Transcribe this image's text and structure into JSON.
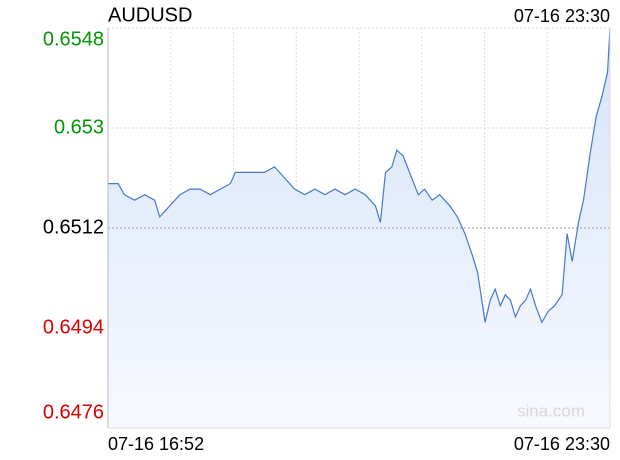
{
  "chart_data": {
    "type": "line",
    "title": "AUDUSD",
    "timestamp": "07-16 23:30",
    "x_labels": [
      "07-16 16:52",
      "07-16 23:30"
    ],
    "watermark": "sina.com",
    "xlim": [
      0,
      398
    ],
    "x": [
      0,
      8,
      13,
      21,
      29,
      37,
      41,
      49,
      57,
      65,
      73,
      81,
      89,
      97,
      101,
      109,
      117,
      124,
      132,
      140,
      148,
      156,
      164,
      172,
      180,
      188,
      196,
      204,
      212,
      216,
      220,
      225,
      229,
      234,
      239,
      246,
      251,
      257,
      263,
      271,
      277,
      283,
      289,
      293,
      299,
      303,
      307,
      311,
      315,
      319,
      323,
      327,
      331,
      335,
      339,
      344,
      349,
      354,
      360,
      364,
      368,
      373,
      377,
      382,
      387,
      392,
      396,
      398
    ],
    "series": [
      {
        "name": "AUDUSD",
        "color": "#4a78c8",
        "values": [
          0.652,
          0.652,
          0.6518,
          0.6517,
          0.6518,
          0.6517,
          0.6514,
          0.6516,
          0.6518,
          0.6519,
          0.6519,
          0.6518,
          0.6519,
          0.652,
          0.6522,
          0.6522,
          0.6522,
          0.6522,
          0.6523,
          0.6521,
          0.6519,
          0.6518,
          0.6519,
          0.6518,
          0.6519,
          0.6518,
          0.6519,
          0.6518,
          0.6516,
          0.6513,
          0.6522,
          0.6523,
          0.6526,
          0.6525,
          0.6522,
          0.6518,
          0.6519,
          0.6517,
          0.6518,
          0.6516,
          0.6514,
          0.6511,
          0.6507,
          0.6504,
          0.6495,
          0.6499,
          0.6501,
          0.6498,
          0.65,
          0.6499,
          0.6496,
          0.6498,
          0.6499,
          0.6501,
          0.6498,
          0.6495,
          0.6497,
          0.6498,
          0.65,
          0.6511,
          0.6506,
          0.6513,
          0.6517,
          0.6525,
          0.6532,
          0.6536,
          0.654,
          0.6548
        ]
      }
    ],
    "ylim": [
      0.6476,
      0.6548
    ],
    "yticks": [
      0.6476,
      0.6494,
      0.6512,
      0.653,
      0.6548
    ],
    "reference": 0.6512,
    "up_color": "#009900",
    "down_color": "#dd0000",
    "flat_color": "#000000",
    "grid": true
  }
}
